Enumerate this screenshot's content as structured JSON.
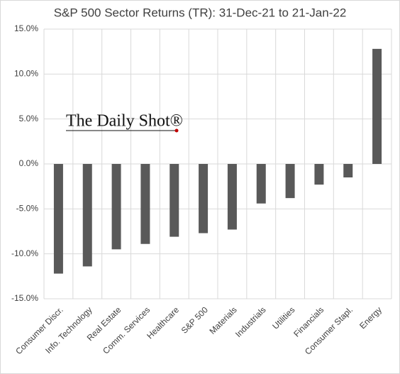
{
  "chart_data": {
    "type": "bar",
    "title": "S&P 500 Sector Returns (TR): 31-Dec-21 to 21-Jan-22",
    "watermark": "The Daily Shot®",
    "categories": [
      "Consumer Discr.",
      "Info. Technology",
      "Real Estate",
      "Comm. Services",
      "Healthcare",
      "S&P 500",
      "Materials",
      "Industrials",
      "Utilities",
      "Financials",
      "Consumer Stapl.",
      "Energy"
    ],
    "values": [
      -12.2,
      -11.4,
      -9.5,
      -8.9,
      -8.1,
      -7.7,
      -7.3,
      -4.4,
      -3.8,
      -2.3,
      -1.5,
      12.8
    ],
    "color": "#595959",
    "ylim": [
      -15,
      15
    ],
    "yticks": [
      {
        "value": -15,
        "label": "-15.0%"
      },
      {
        "value": -10,
        "label": "-10.0%"
      },
      {
        "value": -5,
        "label": "-5.0%"
      },
      {
        "value": 0,
        "label": "0.0%"
      },
      {
        "value": 5,
        "label": "5.0%"
      },
      {
        "value": 10,
        "label": "10.0%"
      },
      {
        "value": 15,
        "label": "15.0%"
      }
    ],
    "grid": true
  }
}
